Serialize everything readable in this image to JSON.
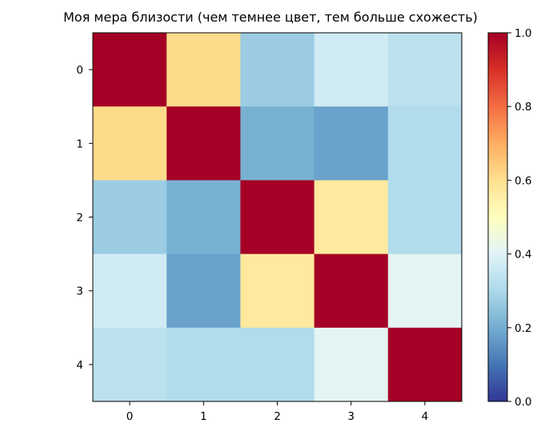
{
  "chart_data": {
    "type": "heatmap",
    "title": "Моя мера близости (чем темнее цвет, тем больше схожесть)",
    "xlabel": "",
    "ylabel": "",
    "x_ticks": [
      "0",
      "1",
      "2",
      "3",
      "4"
    ],
    "y_ticks": [
      "0",
      "1",
      "2",
      "3",
      "4"
    ],
    "matrix": [
      [
        1.0,
        0.61,
        0.27,
        0.37,
        0.33
      ],
      [
        0.61,
        1.0,
        0.21,
        0.18,
        0.31
      ],
      [
        0.27,
        0.21,
        1.0,
        0.57,
        0.31
      ],
      [
        0.37,
        0.18,
        0.57,
        1.0,
        0.41
      ],
      [
        0.33,
        0.31,
        0.31,
        0.41,
        1.0
      ]
    ],
    "colormap": "RdYlBu_r",
    "vmin": 0.0,
    "vmax": 1.0,
    "colorbar": {
      "ticks": [
        "0.0",
        "0.2",
        "0.4",
        "0.6",
        "0.8",
        "1.0"
      ],
      "tick_values": [
        0.0,
        0.2,
        0.4,
        0.6,
        0.8,
        1.0
      ]
    },
    "grid": false,
    "legend": "none"
  }
}
